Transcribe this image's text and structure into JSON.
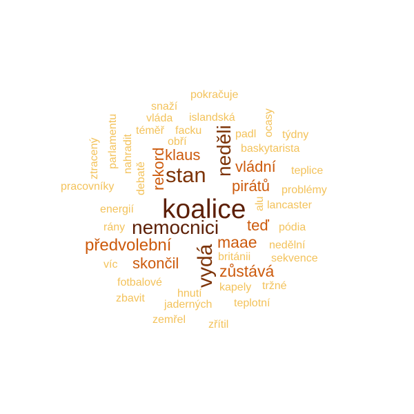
{
  "palette": {
    "darkest": "#5c1f06",
    "dark": "#7d3408",
    "medium": "#cc5a0c",
    "orange": "#e67f1e",
    "light": "#f3c25a"
  },
  "words": [
    {
      "text": "koalice",
      "color": "#5c1f06"
    },
    {
      "text": "nemocnici",
      "color": "#5c1f06"
    },
    {
      "text": "neděli",
      "color": "#7d3408"
    },
    {
      "text": "vydá",
      "color": "#7d3408"
    },
    {
      "text": "stan",
      "color": "#7d3408"
    },
    {
      "text": "předvolební",
      "color": "#cc5a0c"
    },
    {
      "text": "zůstává",
      "color": "#cc5a0c"
    },
    {
      "text": "maae",
      "color": "#cc5a0c"
    },
    {
      "text": "teď",
      "color": "#cc5a0c"
    },
    {
      "text": "vládní",
      "color": "#cc5a0c"
    },
    {
      "text": "pirátů",
      "color": "#cc5a0c"
    },
    {
      "text": "skončil",
      "color": "#cc5a0c"
    },
    {
      "text": "klaus",
      "color": "#cc5a0c"
    },
    {
      "text": "rekord",
      "color": "#cc5a0c"
    },
    {
      "text": "pokračuje",
      "color": "#f3c25a"
    },
    {
      "text": "snaží",
      "color": "#f3c25a"
    },
    {
      "text": "vláda",
      "color": "#f3c25a"
    },
    {
      "text": "islandská",
      "color": "#f3c25a"
    },
    {
      "text": "téměř",
      "color": "#f3c25a"
    },
    {
      "text": "facku",
      "color": "#f3c25a"
    },
    {
      "text": "obří",
      "color": "#f3c25a"
    },
    {
      "text": "padl",
      "color": "#f3c25a"
    },
    {
      "text": "týdny",
      "color": "#f3c25a"
    },
    {
      "text": "ocasy",
      "color": "#f3c25a"
    },
    {
      "text": "baskytarista",
      "color": "#f3c25a"
    },
    {
      "text": "parlamentu",
      "color": "#f3c25a"
    },
    {
      "text": "ztracený",
      "color": "#f3c25a"
    },
    {
      "text": "nahradit",
      "color": "#f3c25a"
    },
    {
      "text": "debatě",
      "color": "#f3c25a"
    },
    {
      "text": "teplice",
      "color": "#f3c25a"
    },
    {
      "text": "pracovníky",
      "color": "#f3c25a"
    },
    {
      "text": "problémy",
      "color": "#f3c25a"
    },
    {
      "text": "alu",
      "color": "#f3c25a"
    },
    {
      "text": "lancaster",
      "color": "#f3c25a"
    },
    {
      "text": "energií",
      "color": "#f3c25a"
    },
    {
      "text": "rány",
      "color": "#f3c25a"
    },
    {
      "text": "pódia",
      "color": "#f3c25a"
    },
    {
      "text": "nedělní",
      "color": "#f3c25a"
    },
    {
      "text": "británii",
      "color": "#f3c25a"
    },
    {
      "text": "sekvence",
      "color": "#f3c25a"
    },
    {
      "text": "víc",
      "color": "#f3c25a"
    },
    {
      "text": "fotbalové",
      "color": "#f3c25a"
    },
    {
      "text": "kapely",
      "color": "#f3c25a"
    },
    {
      "text": "tržné",
      "color": "#f3c25a"
    },
    {
      "text": "hnutí",
      "color": "#f3c25a"
    },
    {
      "text": "zbavit",
      "color": "#f3c25a"
    },
    {
      "text": "jaderných",
      "color": "#f3c25a"
    },
    {
      "text": "teplotní",
      "color": "#f3c25a"
    },
    {
      "text": "zemřel",
      "color": "#f3c25a"
    },
    {
      "text": "zřítil",
      "color": "#f3c25a"
    }
  ]
}
